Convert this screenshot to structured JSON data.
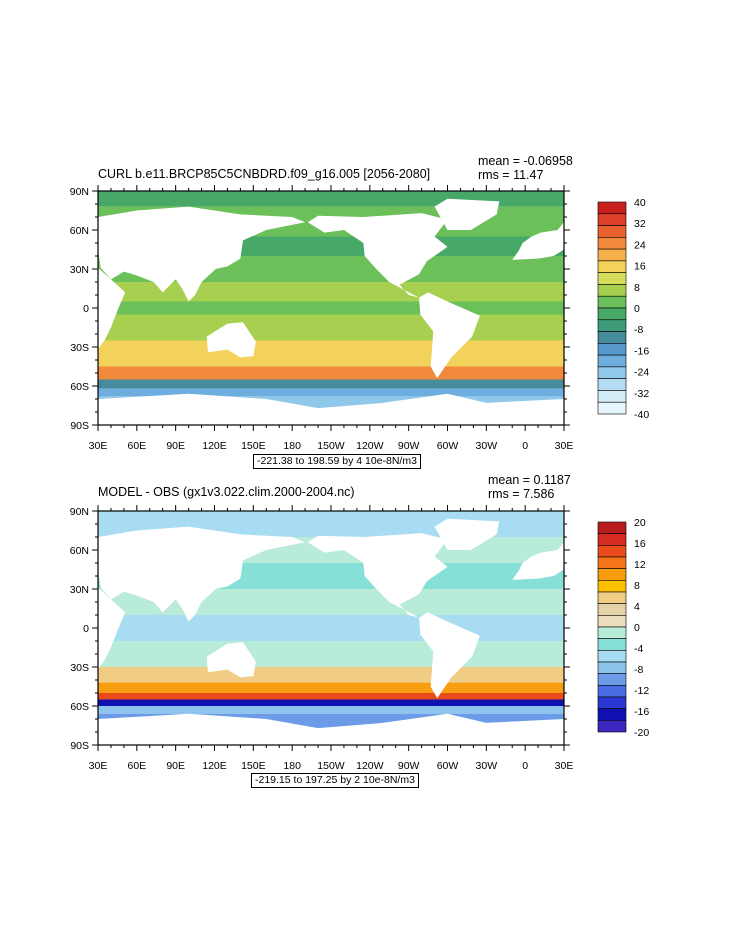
{
  "chart_data": [
    {
      "type": "heatmap",
      "title": "CURL b.e11.BRCP85C5CNBDRD.f09_g16.005 [2056-2080]",
      "mean_label": "mean = -0.06958",
      "rms_label": "rms = 11.47",
      "info_label": "-221.38 to 198.59 by 4 10e-8N/m3",
      "ylim": [
        -90,
        90
      ],
      "xlim": [
        30,
        390
      ],
      "lat_ticks": [
        {
          "value": 90,
          "label": "90N"
        },
        {
          "value": 60,
          "label": "60N"
        },
        {
          "value": 30,
          "label": "30N"
        },
        {
          "value": 0,
          "label": "0"
        },
        {
          "value": -30,
          "label": "30S"
        },
        {
          "value": -60,
          "label": "60S"
        },
        {
          "value": -90,
          "label": "90S"
        }
      ],
      "lon_ticks": [
        {
          "value": 30,
          "label": "30E"
        },
        {
          "value": 60,
          "label": "60E"
        },
        {
          "value": 90,
          "label": "90E"
        },
        {
          "value": 120,
          "label": "120E"
        },
        {
          "value": 150,
          "label": "150E"
        },
        {
          "value": 180,
          "label": "180"
        },
        {
          "value": 210,
          "label": "150W"
        },
        {
          "value": 240,
          "label": "120W"
        },
        {
          "value": 270,
          "label": "90W"
        },
        {
          "value": 300,
          "label": "60W"
        },
        {
          "value": 330,
          "label": "30W"
        },
        {
          "value": 360,
          "label": "0"
        },
        {
          "value": 390,
          "label": "30E"
        }
      ],
      "colorbar": {
        "labels": [
          "40",
          "32",
          "24",
          "16",
          "8",
          "0",
          "-8",
          "-16",
          "-24",
          "-32",
          "-40"
        ],
        "colors": [
          "#c8201e",
          "#dc4028",
          "#e8602e",
          "#f08a3a",
          "#f5b04a",
          "#f2d25a",
          "#d4de5a",
          "#a8d050",
          "#6cc05a",
          "#48a868",
          "#3e9a78",
          "#468c9c",
          "#5698cc",
          "#6eaede",
          "#90c8ea",
          "#b4dcf2",
          "#d2ecf8",
          "#e6f4fb"
        ]
      }
    },
    {
      "type": "heatmap",
      "title": "MODEL - OBS (gx1v3.022.clim.2000-2004.nc)",
      "mean_label": "mean = 0.1187",
      "rms_label": "rms = 7.586",
      "info_label": "-219.15 to 197.25 by 2 10e-8N/m3",
      "ylim": [
        -90,
        90
      ],
      "xlim": [
        30,
        390
      ],
      "lat_ticks": [
        {
          "value": 90,
          "label": "90N"
        },
        {
          "value": 60,
          "label": "60N"
        },
        {
          "value": 30,
          "label": "30N"
        },
        {
          "value": 0,
          "label": "0"
        },
        {
          "value": -30,
          "label": "30S"
        },
        {
          "value": -60,
          "label": "60S"
        },
        {
          "value": -90,
          "label": "90S"
        }
      ],
      "lon_ticks": [
        {
          "value": 30,
          "label": "30E"
        },
        {
          "value": 60,
          "label": "60E"
        },
        {
          "value": 90,
          "label": "90E"
        },
        {
          "value": 120,
          "label": "120E"
        },
        {
          "value": 150,
          "label": "150E"
        },
        {
          "value": 180,
          "label": "180"
        },
        {
          "value": 210,
          "label": "150W"
        },
        {
          "value": 240,
          "label": "120W"
        },
        {
          "value": 270,
          "label": "90W"
        },
        {
          "value": 300,
          "label": "60W"
        },
        {
          "value": 330,
          "label": "30W"
        },
        {
          "value": 360,
          "label": "0"
        },
        {
          "value": 390,
          "label": "30E"
        }
      ],
      "colorbar": {
        "labels": [
          "20",
          "16",
          "12",
          "8",
          "4",
          "0",
          "-4",
          "-8",
          "-12",
          "-16",
          "-20"
        ],
        "colors": [
          "#b81c1c",
          "#d42c20",
          "#e84a1a",
          "#f47418",
          "#f89c10",
          "#fcc000",
          "#f0cc84",
          "#e6d2a8",
          "#ecdcc0",
          "#b8ecd8",
          "#86e0d8",
          "#a8dcf2",
          "#8cc4ee",
          "#6c9ce8",
          "#4a6ce2",
          "#2838d0",
          "#1010b0",
          "#3c28c0"
        ]
      }
    }
  ]
}
